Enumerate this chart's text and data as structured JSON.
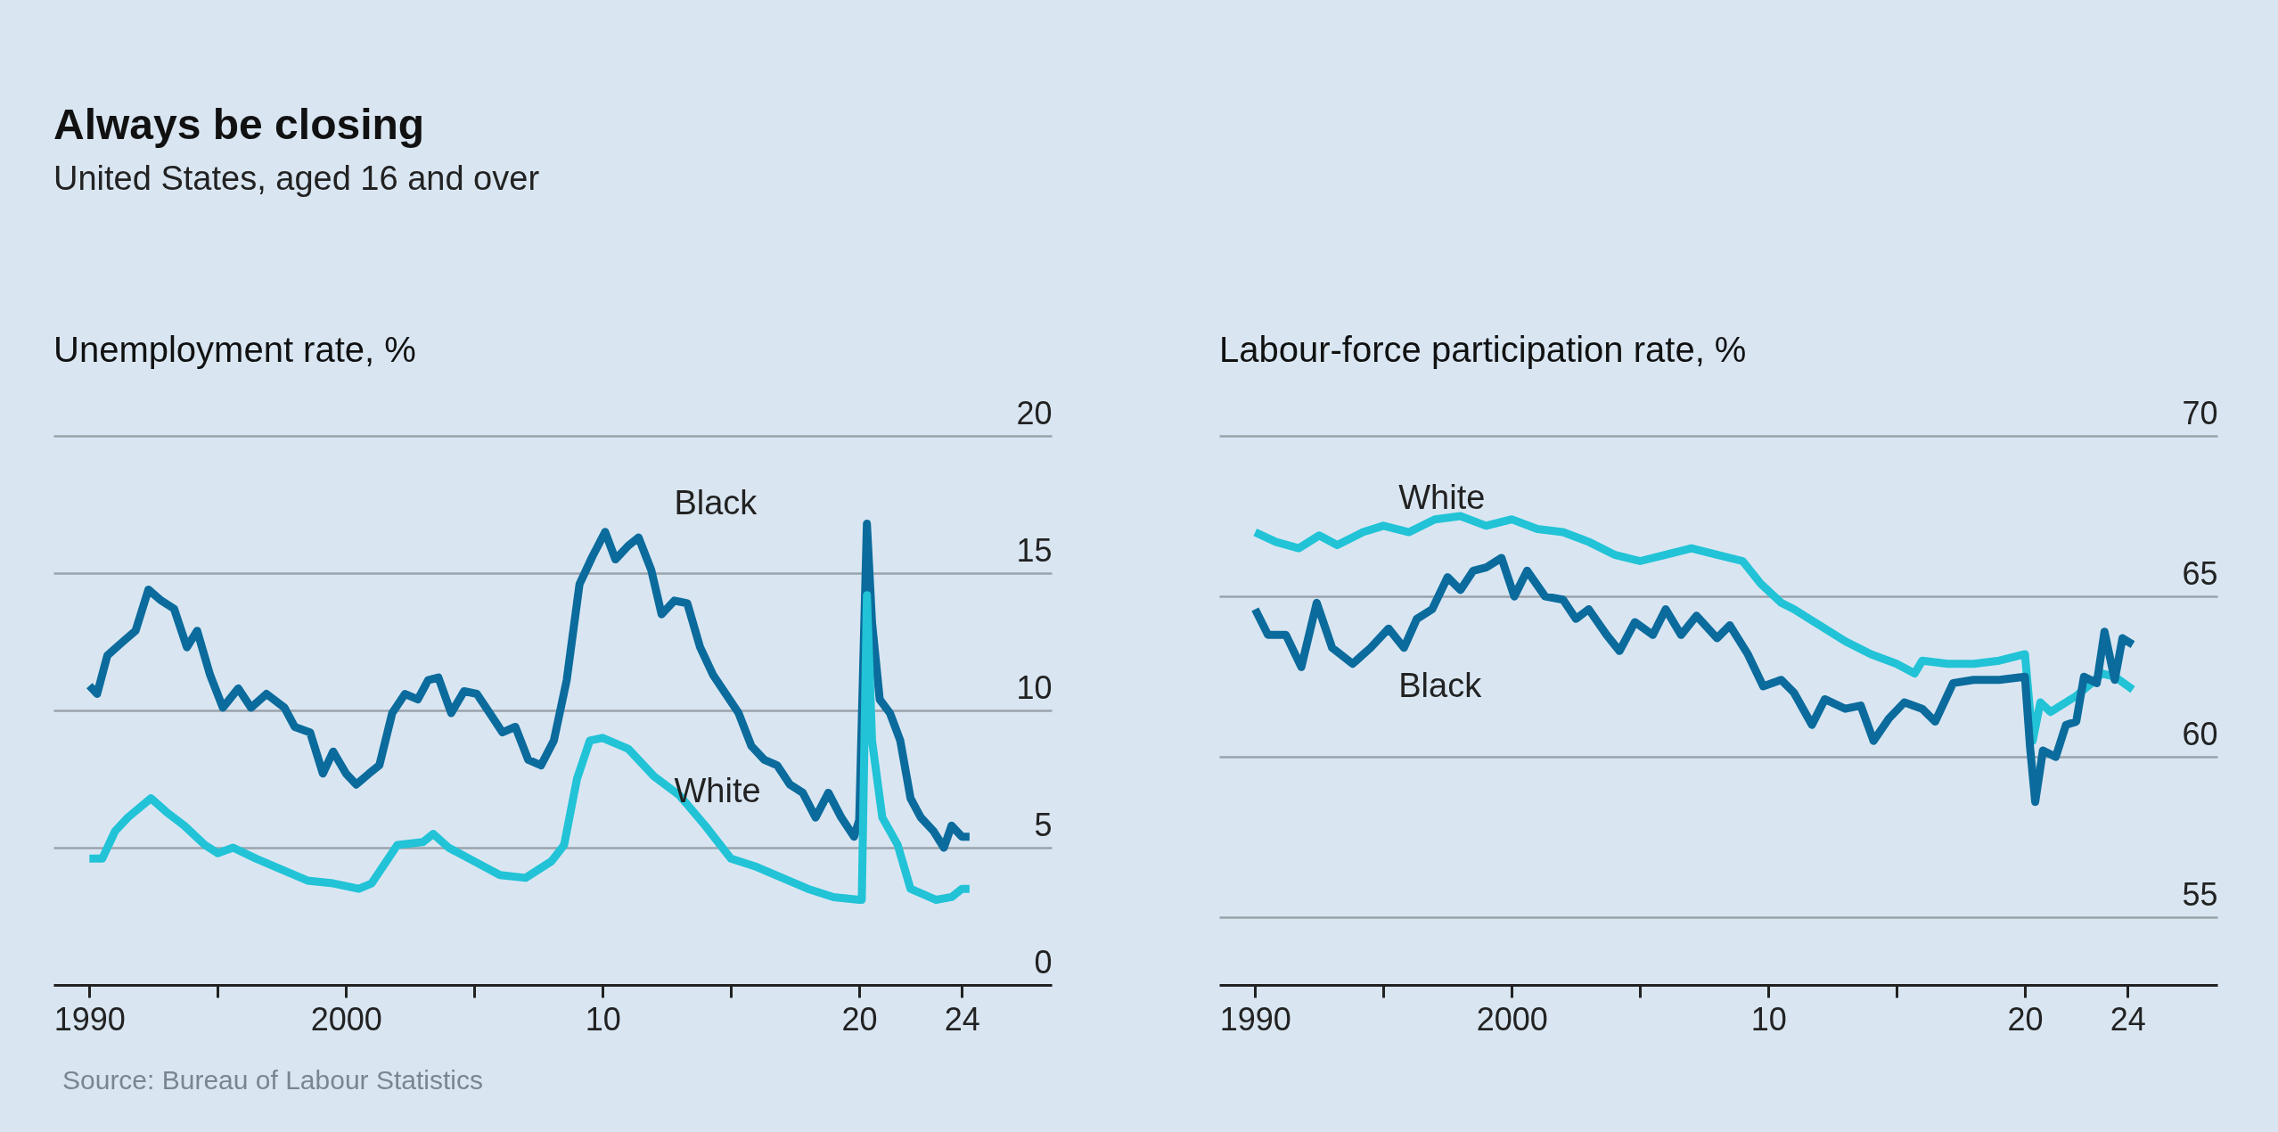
{
  "chart_data": [
    {
      "type": "line",
      "title": "Always be closing",
      "subtitle": "United States, aged 16 and over",
      "ylabel": "Unemployment rate, %",
      "grid": "y",
      "legend": false,
      "xlim": [
        1988.6,
        2027.5
      ],
      "ylim": [
        0,
        20
      ],
      "xticks": [
        {
          "value": 1990,
          "label": "1990"
        },
        {
          "value": 1995,
          "label": null
        },
        {
          "value": 2000,
          "label": "2000"
        },
        {
          "value": 2005,
          "label": null
        },
        {
          "value": 2010,
          "label": "10"
        },
        {
          "value": 2015,
          "label": null
        },
        {
          "value": 2020,
          "label": "20"
        },
        {
          "value": 2024,
          "label": "24"
        }
      ],
      "yticks": [
        0,
        5,
        10,
        15,
        20
      ],
      "series": [
        {
          "name": "Black",
          "color": "#0b6b9c",
          "x": [
            1990.0,
            1990.3,
            1990.7,
            1991.3,
            1991.8,
            1992.3,
            1992.8,
            1993.3,
            1993.8,
            1994.2,
            1994.7,
            1995.2,
            1995.8,
            1996.3,
            1996.9,
            1997.6,
            1998.0,
            1998.6,
            1999.1,
            1999.5,
            2000.0,
            2000.4,
            2000.9,
            2001.3,
            2001.8,
            2002.3,
            2002.8,
            2003.2,
            2003.6,
            2004.1,
            2004.6,
            2005.1,
            2005.6,
            2006.1,
            2006.6,
            2007.1,
            2007.6,
            2008.1,
            2008.6,
            2009.1,
            2009.6,
            2010.1,
            2010.5,
            2011.0,
            2011.4,
            2011.9,
            2012.3,
            2012.8,
            2013.3,
            2013.8,
            2014.3,
            2014.8,
            2015.3,
            2015.8,
            2016.3,
            2016.8,
            2017.3,
            2017.8,
            2018.3,
            2018.8,
            2019.3,
            2019.8,
            2020.0,
            2020.3,
            2020.5,
            2020.8,
            2021.2,
            2021.6,
            2022.0,
            2022.4,
            2022.9,
            2023.3,
            2023.6,
            2024.0,
            2024.3
          ],
          "values": [
            10.9,
            10.6,
            12.0,
            12.5,
            12.9,
            14.4,
            14.0,
            13.7,
            12.3,
            12.9,
            11.3,
            10.1,
            10.8,
            10.1,
            10.6,
            10.1,
            9.4,
            9.2,
            7.7,
            8.5,
            7.7,
            7.3,
            7.7,
            8.0,
            9.9,
            10.6,
            10.4,
            11.1,
            11.2,
            9.9,
            10.7,
            10.6,
            9.9,
            9.2,
            9.4,
            8.2,
            8.0,
            8.9,
            11.1,
            14.6,
            15.6,
            16.5,
            15.5,
            16.0,
            16.3,
            15.1,
            13.5,
            14.0,
            13.9,
            12.3,
            11.3,
            10.6,
            9.9,
            8.7,
            8.2,
            8.0,
            7.3,
            7.0,
            6.1,
            7.0,
            6.1,
            5.4,
            6.0,
            16.8,
            13.2,
            10.4,
            9.9,
            8.9,
            6.8,
            6.1,
            5.6,
            5.0,
            5.8,
            5.4,
            5.4
          ]
        },
        {
          "name": "White",
          "color": "#22c3d6",
          "x": [
            1990.0,
            1990.5,
            1991.0,
            1991.5,
            1992.4,
            1993.0,
            1993.7,
            1994.5,
            1995.0,
            1995.6,
            1996.5,
            1997.5,
            1998.5,
            1999.5,
            2000.5,
            2001.0,
            2001.5,
            2002.0,
            2003.0,
            2003.4,
            2004.0,
            2005.0,
            2006.0,
            2007.0,
            2008.0,
            2008.5,
            2009.0,
            2009.5,
            2010.0,
            2011.0,
            2012.0,
            2013.0,
            2014.0,
            2015.0,
            2016.0,
            2017.0,
            2018.0,
            2019.0,
            2020.0,
            2020.1,
            2020.3,
            2020.5,
            2020.9,
            2021.5,
            2022.0,
            2023.0,
            2023.6,
            2024.0,
            2024.3
          ],
          "values": [
            4.6,
            4.6,
            5.6,
            6.1,
            6.8,
            6.3,
            5.8,
            5.1,
            4.8,
            5.0,
            4.6,
            4.2,
            3.8,
            3.7,
            3.5,
            3.7,
            4.4,
            5.1,
            5.2,
            5.5,
            5.0,
            4.5,
            4.0,
            3.9,
            4.5,
            5.1,
            7.5,
            8.9,
            9.0,
            8.6,
            7.6,
            6.9,
            5.8,
            4.6,
            4.3,
            3.9,
            3.5,
            3.2,
            3.1,
            3.1,
            14.2,
            8.9,
            6.1,
            5.1,
            3.5,
            3.1,
            3.2,
            3.5,
            3.5
          ]
        }
      ],
      "annotations": [
        "Source: Bureau of Labour Statistics"
      ]
    },
    {
      "type": "line",
      "ylabel": "Labour-force participation rate, %",
      "grid": "y",
      "legend": false,
      "xlim": [
        1988.6,
        2027.5
      ],
      "ylim": [
        52.9,
        70
      ],
      "xticks": [
        {
          "value": 1990,
          "label": "1990"
        },
        {
          "value": 1995,
          "label": null
        },
        {
          "value": 2000,
          "label": "2000"
        },
        {
          "value": 2005,
          "label": null
        },
        {
          "value": 2010,
          "label": "10"
        },
        {
          "value": 2015,
          "label": null
        },
        {
          "value": 2020,
          "label": "20"
        },
        {
          "value": 2024,
          "label": "24"
        }
      ],
      "yticks": [
        55,
        60,
        65,
        70
      ],
      "series": [
        {
          "name": "White",
          "color": "#22c3d6",
          "x": [
            1990.0,
            1990.8,
            1991.7,
            1992.5,
            1993.2,
            1994.2,
            1995.0,
            1996.0,
            1997.0,
            1998.0,
            1999.0,
            2000.0,
            2001.0,
            2002.0,
            2003.0,
            2004.0,
            2005.0,
            2006.0,
            2007.0,
            2008.0,
            2009.0,
            2009.7,
            2010.5,
            2011.0,
            2012.0,
            2013.0,
            2014.0,
            2015.0,
            2015.7,
            2016.0,
            2017.0,
            2018.0,
            2019.0,
            2020.0,
            2020.3,
            2020.6,
            2021.0,
            2022.0,
            2022.6,
            2023.0,
            2023.5,
            2024.2
          ],
          "values": [
            67.0,
            66.7,
            66.5,
            66.9,
            66.6,
            67.0,
            67.2,
            67.0,
            67.4,
            67.5,
            67.2,
            67.4,
            67.1,
            67.0,
            66.7,
            66.3,
            66.1,
            66.3,
            66.5,
            66.3,
            66.1,
            65.4,
            64.8,
            64.6,
            64.1,
            63.6,
            63.2,
            62.9,
            62.6,
            63.0,
            62.9,
            62.9,
            63.0,
            63.2,
            60.5,
            61.7,
            61.4,
            61.9,
            62.3,
            62.6,
            62.5,
            62.1
          ]
        },
        {
          "name": "Black",
          "color": "#0b6b9c",
          "x": [
            1990.0,
            1990.5,
            1991.2,
            1991.8,
            1992.4,
            1993.0,
            1993.8,
            1994.5,
            1995.2,
            1995.8,
            1996.3,
            1996.9,
            1997.5,
            1998.0,
            1998.5,
            1999.0,
            1999.6,
            2000.1,
            2000.6,
            2001.3,
            2002.0,
            2002.5,
            2003.0,
            2003.7,
            2004.2,
            2004.8,
            2005.5,
            2006.0,
            2006.6,
            2007.2,
            2008.0,
            2008.5,
            2009.2,
            2009.8,
            2010.5,
            2011.0,
            2011.7,
            2012.2,
            2013.0,
            2013.6,
            2014.1,
            2014.7,
            2015.3,
            2016.0,
            2016.5,
            2017.2,
            2018.0,
            2019.0,
            2020.0,
            2020.2,
            2020.4,
            2020.7,
            2021.2,
            2021.6,
            2022.0,
            2022.3,
            2022.8,
            2023.1,
            2023.5,
            2023.8,
            2024.2
          ],
          "values": [
            64.6,
            63.8,
            63.8,
            62.8,
            64.8,
            63.4,
            62.9,
            63.4,
            64.0,
            63.4,
            64.3,
            64.6,
            65.6,
            65.2,
            65.8,
            65.9,
            66.2,
            65.0,
            65.8,
            65.0,
            64.9,
            64.3,
            64.6,
            63.8,
            63.3,
            64.2,
            63.8,
            64.6,
            63.8,
            64.4,
            63.7,
            64.1,
            63.2,
            62.2,
            62.4,
            62.0,
            61.0,
            61.8,
            61.5,
            61.6,
            60.5,
            61.2,
            61.7,
            61.5,
            61.1,
            62.3,
            62.4,
            62.4,
            62.5,
            60.3,
            58.6,
            60.2,
            60.0,
            61.0,
            61.1,
            62.5,
            62.3,
            63.9,
            62.4,
            63.7,
            63.5
          ]
        }
      ]
    }
  ]
}
